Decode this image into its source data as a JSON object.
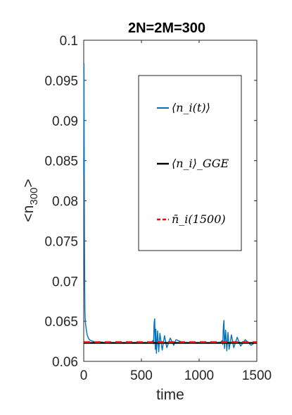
{
  "chart_data": {
    "type": "line",
    "title": "2N=2M=300",
    "xlabel": "time",
    "ylabel": "<n300>",
    "ylabel_main": "<n",
    "ylabel_sub": "300",
    "ylabel_end": ">",
    "xlim": [
      0,
      1500
    ],
    "ylim": [
      0.06,
      0.1
    ],
    "xticks": [
      0,
      500,
      1000,
      1500
    ],
    "yticks": [
      0.06,
      0.065,
      0.07,
      0.075,
      0.08,
      0.085,
      0.09,
      0.095,
      0.1
    ],
    "xtick_labels": [
      "0",
      "500",
      "1000",
      "1500"
    ],
    "ytick_labels": [
      "0.06",
      "0.065",
      "0.07",
      "0.075",
      "0.08",
      "0.085",
      "0.09",
      "0.095",
      "0.1"
    ],
    "grid": false,
    "legend_position": "right",
    "colors": {
      "series1": "#0072BD",
      "series2": "#000000",
      "series3": "#FF0000"
    },
    "series": [
      {
        "name": "⟨n_i(t)⟩",
        "style": "solid",
        "color": "#0072BD",
        "x": [
          0,
          2,
          4,
          6,
          8,
          10,
          12,
          15,
          20,
          25,
          30,
          40,
          50,
          60,
          80,
          100,
          150,
          200,
          300,
          400,
          500,
          550,
          590,
          600,
          605,
          610,
          615,
          620,
          625,
          630,
          640,
          650,
          660,
          680,
          700,
          720,
          750,
          780,
          800,
          850,
          900,
          950,
          1000,
          1100,
          1150,
          1190,
          1200,
          1205,
          1210,
          1215,
          1220,
          1230,
          1240,
          1250,
          1260,
          1280,
          1300,
          1330,
          1360,
          1400,
          1450,
          1500
        ],
        "y": [
          0.0835,
          0.0971,
          0.087,
          0.076,
          0.07,
          0.0665,
          0.0655,
          0.0648,
          0.0642,
          0.0637,
          0.0633,
          0.0629,
          0.0627,
          0.0626,
          0.0625,
          0.0624,
          0.0624,
          0.0623,
          0.0623,
          0.0623,
          0.0623,
          0.0623,
          0.0624,
          0.0626,
          0.0622,
          0.0648,
          0.0653,
          0.0615,
          0.064,
          0.061,
          0.0638,
          0.0612,
          0.0635,
          0.0614,
          0.0632,
          0.0617,
          0.0629,
          0.062,
          0.0627,
          0.0624,
          0.0623,
          0.0623,
          0.0623,
          0.0623,
          0.0623,
          0.0624,
          0.0626,
          0.0621,
          0.0643,
          0.0651,
          0.0616,
          0.0639,
          0.0613,
          0.0636,
          0.0615,
          0.0633,
          0.0617,
          0.063,
          0.0619,
          0.0627,
          0.062,
          0.0625
        ]
      },
      {
        "name": "⟨n_i⟩_GGE",
        "style": "solid",
        "color": "#000000",
        "x": [
          0,
          1500
        ],
        "y": [
          0.0623,
          0.0623
        ]
      },
      {
        "name": "n̄_i(1500)",
        "style": "dashed",
        "color": "#FF0000",
        "x": [
          0,
          1500
        ],
        "y": [
          0.0624,
          0.0624
        ]
      }
    ]
  }
}
